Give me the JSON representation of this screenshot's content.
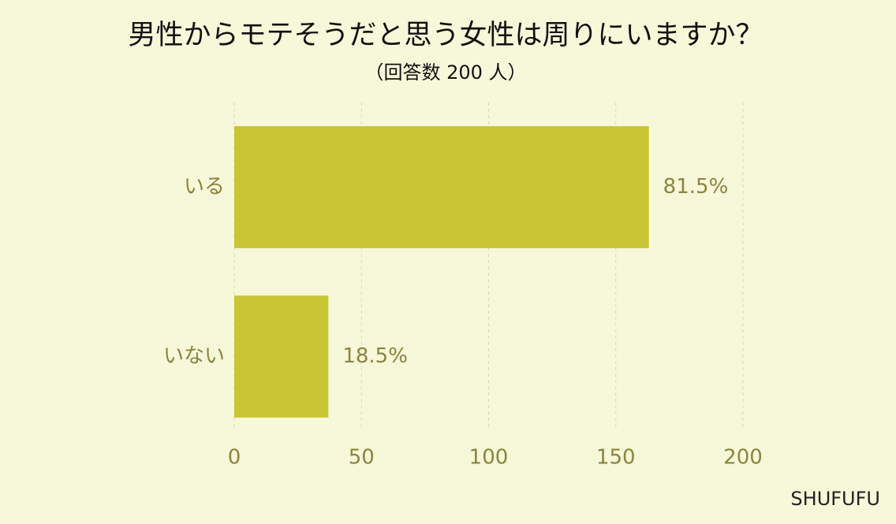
{
  "chart_data": {
    "type": "bar",
    "orientation": "horizontal",
    "title": "男性からモテそうだと思う女性は周りにいますか？",
    "subtitle": "（回答数 200 人）",
    "categories": [
      "いる",
      "いない"
    ],
    "values": [
      163,
      37
    ],
    "value_labels": [
      "81.5%",
      "18.5%"
    ],
    "color": "#c9c634",
    "xlim": [
      0,
      200
    ],
    "xticks": [
      0,
      50,
      100,
      150,
      200
    ],
    "grid": true,
    "source": "SHUFUFU"
  }
}
